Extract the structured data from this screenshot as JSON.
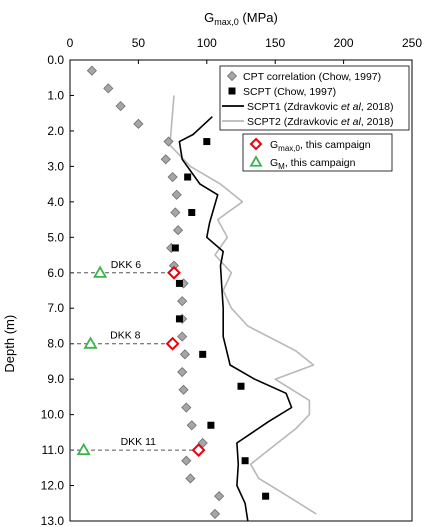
{
  "chart_data": {
    "type": "scatter",
    "title": "",
    "xlabel": "G",
    "xlabel_sub": "max,0",
    "xlabel_unit": " (MPa)",
    "ylabel": "Depth (m)",
    "x_axis_position": "top",
    "y_axis_inverted": true,
    "xlim": [
      0,
      250
    ],
    "ylim": [
      0,
      13
    ],
    "xticks": [
      "0",
      "50",
      "100",
      "150",
      "200",
      "250"
    ],
    "xtick_values": [
      0,
      50,
      100,
      150,
      200,
      250
    ],
    "yticks": [
      "0.0",
      "1.0",
      "2.0",
      "3.0",
      "4.0",
      "5.0",
      "6.0",
      "7.0",
      "8.0",
      "9.0",
      "10.0",
      "11.0",
      "12.0",
      "13.0"
    ],
    "ytick_values": [
      0,
      1,
      2,
      3,
      4,
      5,
      6,
      7,
      8,
      9,
      10,
      11,
      12,
      13
    ],
    "grid": false,
    "legend_position": "top-right",
    "series": [
      {
        "name": "CPT correlation (Chow, 1997)",
        "style": "diamond",
        "color": "#a6a6a6",
        "points": [
          [
            16,
            0.3
          ],
          [
            28,
            0.8
          ],
          [
            37,
            1.3
          ],
          [
            50,
            1.8
          ],
          [
            72,
            2.3
          ],
          [
            70,
            2.8
          ],
          [
            75,
            3.3
          ],
          [
            78,
            3.8
          ],
          [
            77,
            4.3
          ],
          [
            79,
            4.8
          ],
          [
            74,
            5.3
          ],
          [
            76,
            5.8
          ],
          [
            83,
            6.3
          ],
          [
            82,
            6.8
          ],
          [
            82,
            7.3
          ],
          [
            82,
            7.8
          ],
          [
            84,
            8.3
          ],
          [
            82,
            8.8
          ],
          [
            83,
            9.3
          ],
          [
            85,
            9.8
          ],
          [
            89,
            10.3
          ],
          [
            97,
            10.8
          ],
          [
            85,
            11.3
          ],
          [
            88,
            11.8
          ],
          [
            109,
            12.3
          ],
          [
            106,
            12.8
          ]
        ]
      },
      {
        "name": "SCPT (Chow, 1997)",
        "style": "square",
        "color": "#000000",
        "points": [
          [
            100,
            2.3
          ],
          [
            86,
            3.3
          ],
          [
            89,
            4.3
          ],
          [
            77,
            5.3
          ],
          [
            80,
            6.3
          ],
          [
            80,
            7.3
          ],
          [
            97,
            8.3
          ],
          [
            125,
            9.2
          ],
          [
            103,
            10.3
          ],
          [
            128,
            11.3
          ],
          [
            143,
            12.3
          ]
        ]
      },
      {
        "name": "SCPT1 (Zdravkovic et al, 2018)",
        "name_prefix": "SCPT1 (Zdravkovic ",
        "name_italic": "et al",
        "name_suffix": ", 2018)",
        "style": "line",
        "color": "#000000",
        "points": [
          [
            104,
            1.6
          ],
          [
            90,
            2.1
          ],
          [
            80,
            2.3
          ],
          [
            82,
            2.8
          ],
          [
            95,
            3.5
          ],
          [
            108,
            3.8
          ],
          [
            102,
            4.6
          ],
          [
            100,
            5.0
          ],
          [
            112,
            5.4
          ],
          [
            110,
            5.8
          ],
          [
            111,
            6.4
          ],
          [
            112,
            7.0
          ],
          [
            112,
            7.8
          ],
          [
            117,
            8.6
          ],
          [
            135,
            9.0
          ],
          [
            158,
            9.4
          ],
          [
            162,
            9.8
          ],
          [
            145,
            10.2
          ],
          [
            122,
            10.8
          ],
          [
            123,
            11.4
          ],
          [
            122,
            12.0
          ],
          [
            128,
            12.5
          ],
          [
            130,
            13.0
          ]
        ]
      },
      {
        "name": "SCPT2 (Zdravkovic et al, 2018)",
        "name_prefix": "SCPT2 (Zdravkovic ",
        "name_italic": "et al",
        "name_suffix": ", 2018)",
        "style": "line",
        "color": "#b8b8b8",
        "points": [
          [
            76,
            1.0
          ],
          [
            73,
            2.4
          ],
          [
            88,
            3.0
          ],
          [
            110,
            3.5
          ],
          [
            126,
            4.0
          ],
          [
            108,
            4.5
          ],
          [
            115,
            5.0
          ],
          [
            106,
            5.5
          ],
          [
            118,
            6.0
          ],
          [
            112,
            6.5
          ],
          [
            118,
            7.0
          ],
          [
            130,
            7.5
          ],
          [
            165,
            8.2
          ],
          [
            178,
            8.6
          ],
          [
            150,
            9.0
          ],
          [
            175,
            9.6
          ],
          [
            175,
            10.0
          ],
          [
            165,
            10.4
          ],
          [
            145,
            11.0
          ],
          [
            132,
            11.4
          ],
          [
            138,
            11.8
          ],
          [
            155,
            12.2
          ],
          [
            180,
            12.8
          ]
        ]
      },
      {
        "name": "G max,0, this campaign",
        "name_main": "G",
        "name_sub": "max,0",
        "name_rest": ", this campaign",
        "style": "open-diamond",
        "color": "#e8000b",
        "points": [
          [
            76,
            6.0
          ],
          [
            75,
            8.0
          ],
          [
            94,
            11.0
          ]
        ]
      },
      {
        "name": "G M, this campaign",
        "name_main": "G",
        "name_sub": "M",
        "name_rest": ", this campaign",
        "style": "open-triangle",
        "color": "#3cb44b",
        "points": [
          [
            22,
            6.0
          ],
          [
            15,
            8.0
          ],
          [
            10,
            11.0
          ]
        ]
      }
    ],
    "annotations": [
      {
        "label": "DKK 6",
        "depth": 6.0,
        "x_from": 0,
        "x_to": 76
      },
      {
        "label": "DKK 8",
        "depth": 8.0,
        "x_from": 0,
        "x_to": 75
      },
      {
        "label": "DKK 11",
        "depth": 11.0,
        "x_from": 0,
        "x_to": 94
      }
    ]
  }
}
